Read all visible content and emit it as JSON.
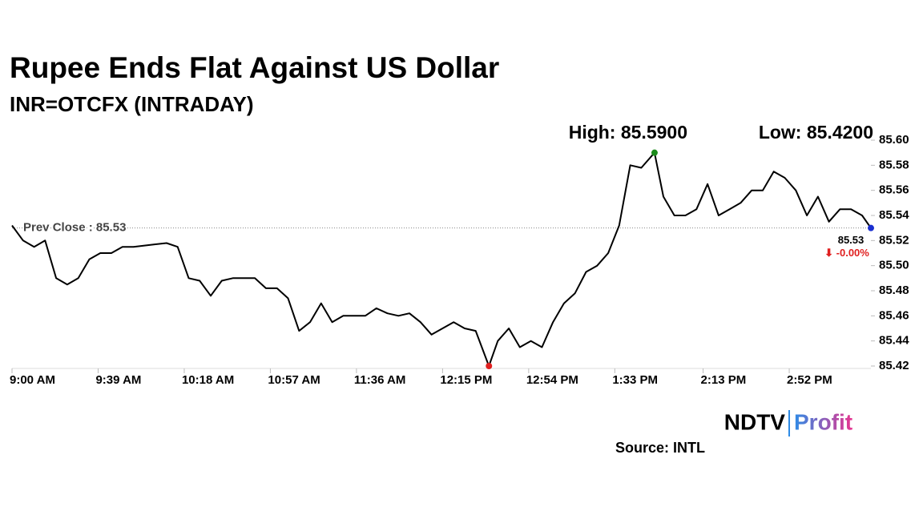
{
  "chart_data": {
    "type": "line",
    "title": "Rupee Ends Flat Against US Dollar",
    "subtitle": "INR=OTCFX (INTRADAY)",
    "x": [
      "9:00 AM",
      "9:05 AM",
      "9:10 AM",
      "9:15 AM",
      "9:20 AM",
      "9:25 AM",
      "9:30 AM",
      "9:35 AM",
      "9:40 AM",
      "9:45 AM",
      "9:50 AM",
      "9:55 AM",
      "10:00 AM",
      "10:05 AM",
      "10:10 AM",
      "10:15 AM",
      "10:20 AM",
      "10:25 AM",
      "10:30 AM",
      "10:35 AM",
      "10:40 AM",
      "10:45 AM",
      "10:50 AM",
      "10:55 AM",
      "11:00 AM",
      "11:05 AM",
      "11:10 AM",
      "11:15 AM",
      "11:20 AM",
      "11:25 AM",
      "11:30 AM",
      "11:35 AM",
      "11:40 AM",
      "11:45 AM",
      "11:50 AM",
      "11:55 AM",
      "12:00 PM",
      "12:05 PM",
      "12:10 PM",
      "12:15 PM",
      "12:20 PM",
      "12:25 PM",
      "12:30 PM",
      "12:36 PM",
      "12:40 PM",
      "12:45 PM",
      "12:50 PM",
      "12:55 PM",
      "1:00 PM",
      "1:05 PM",
      "1:10 PM",
      "1:15 PM",
      "1:20 PM",
      "1:25 PM",
      "1:30 PM",
      "1:35 PM",
      "1:40 PM",
      "1:45 PM",
      "1:51 PM",
      "1:55 PM",
      "2:00 PM",
      "2:05 PM",
      "2:10 PM",
      "2:15 PM",
      "2:20 PM",
      "2:25 PM",
      "2:30 PM",
      "2:35 PM",
      "2:40 PM",
      "2:45 PM",
      "2:50 PM",
      "2:55 PM",
      "3:00 PM",
      "3:05 PM",
      "3:10 PM",
      "3:15 PM",
      "3:20 PM",
      "3:25 PM",
      "3:29 PM"
    ],
    "series": [
      {
        "name": "INR=OTCFX",
        "color": "#000000",
        "values": [
          85.532,
          85.52,
          85.515,
          85.52,
          85.49,
          85.485,
          85.49,
          85.505,
          85.51,
          85.51,
          85.515,
          85.515,
          85.516,
          85.517,
          85.518,
          85.515,
          85.49,
          85.488,
          85.476,
          85.488,
          85.49,
          85.49,
          85.49,
          85.482,
          85.482,
          85.474,
          85.448,
          85.455,
          85.47,
          85.455,
          85.46,
          85.46,
          85.46,
          85.466,
          85.462,
          85.46,
          85.462,
          85.455,
          85.445,
          85.45,
          85.455,
          85.45,
          85.448,
          85.42,
          85.44,
          85.45,
          85.435,
          85.44,
          85.435,
          85.455,
          85.47,
          85.478,
          85.495,
          85.5,
          85.51,
          85.532,
          85.58,
          85.578,
          85.59,
          85.555,
          85.54,
          85.54,
          85.545,
          85.565,
          85.54,
          85.545,
          85.55,
          85.56,
          85.56,
          85.575,
          85.57,
          85.56,
          85.54,
          85.555,
          85.535,
          85.545,
          85.545,
          85.54,
          85.53
        ]
      }
    ],
    "xlim": [
      "9:00 AM",
      "3:29 PM"
    ],
    "xticks": [
      "9:00 AM",
      "9:39 AM",
      "10:18 AM",
      "10:57 AM",
      "11:36 AM",
      "12:15 PM",
      "12:54 PM",
      "1:33 PM",
      "2:13 PM",
      "2:52 PM"
    ],
    "ylim": [
      85.42,
      85.6
    ],
    "yticks": [
      85.42,
      85.44,
      85.46,
      85.48,
      {
        "value": 85.5,
        "label": "85.50"
      },
      85.52,
      85.54,
      85.56,
      85.58,
      {
        "value": 85.6,
        "label": "85.60"
      }
    ],
    "prev_close": {
      "value": 85.53,
      "label": "Prev Close : 85.53"
    },
    "high": {
      "value": 85.59,
      "label": "High: 85.5900",
      "color": "#1a8a1a"
    },
    "low": {
      "value": 85.42,
      "label": "Low: 85.4200",
      "color": "#e02020"
    },
    "last": {
      "value": 85.53,
      "label": "85.53",
      "color": "#1a2fd0"
    },
    "change": {
      "value": 0,
      "label": "⬇ -0.00%",
      "color": "#e02020"
    },
    "source": "Source: INTL",
    "logo": {
      "brand": "NDTV",
      "product": "Profit"
    }
  }
}
